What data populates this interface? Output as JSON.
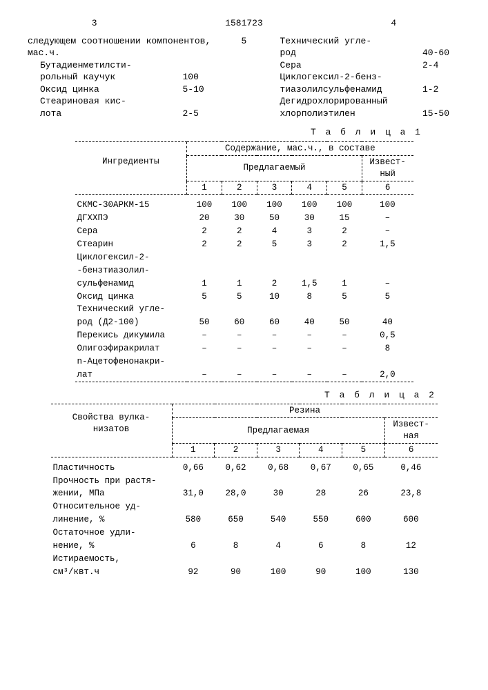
{
  "header": {
    "left_page": "3",
    "doc_no": "1581723",
    "right_page": "4"
  },
  "intro": {
    "left_lead": "следующем соотношении компонентов, мас.ч.",
    "left_items": [
      {
        "label": "Бутадиенметилсти-\nрольный каучук",
        "value": "100"
      },
      {
        "label": "Оксид цинка",
        "value": "5-10"
      },
      {
        "label": "Стеариновая кис-\nлота",
        "value": "2-5"
      }
    ],
    "mid_col_marker": "5",
    "right_items": [
      {
        "label": "Технический угле-\nрод",
        "value": "40-60"
      },
      {
        "label": "Сера",
        "value": "2-4"
      },
      {
        "label": "Циклогексил-2-бенз-\nтиазолилсульфенамид",
        "value": "1-2"
      },
      {
        "label": "Дегидрохлорированный\nхлорполиэтилен",
        "value": "15-50"
      }
    ]
  },
  "table1": {
    "label": "Т а б л и ц а  1",
    "head": {
      "c0": "Ингредиенты",
      "group": "Содержание, мас.ч., в составе",
      "sub1": "Предлагаемый",
      "sub2": "Извест-\nный",
      "cols": [
        "1",
        "2",
        "3",
        "4",
        "5",
        "6"
      ]
    },
    "rows": [
      {
        "label": "СКМС-30АРКМ-15",
        "v": [
          "100",
          "100",
          "100",
          "100",
          "100",
          "100"
        ]
      },
      {
        "label": "ДГХХПЭ",
        "v": [
          "20",
          "30",
          "50",
          "30",
          "15",
          "–"
        ]
      },
      {
        "label": "Сера",
        "v": [
          "2",
          "2",
          "4",
          "3",
          "2",
          "–"
        ]
      },
      {
        "label": "Стеарин",
        "v": [
          "2",
          "2",
          "5",
          "3",
          "2",
          "1,5"
        ]
      },
      {
        "label": "Циклогексил-2-\n-бензтиазолил-\nсульфенамид",
        "v": [
          "1",
          "1",
          "2",
          "1,5",
          "1",
          "–"
        ]
      },
      {
        "label": "Оксид цинка",
        "v": [
          "5",
          "5",
          "10",
          "8",
          "5",
          "5"
        ]
      },
      {
        "label": "Технический угле-\nрод (Д2-100)",
        "v": [
          "50",
          "60",
          "60",
          "40",
          "50",
          "40"
        ]
      },
      {
        "label": "Перекись дикумила",
        "v": [
          "–",
          "–",
          "–",
          "–",
          "–",
          "0,5"
        ]
      },
      {
        "label": "Олигоэфиракрилат",
        "v": [
          "–",
          "–",
          "–",
          "–",
          "–",
          "8"
        ]
      },
      {
        "label": "n-Ацетофенонакри-\nлат",
        "v": [
          "–",
          "–",
          "–",
          "–",
          "–",
          "2,0"
        ]
      }
    ]
  },
  "table2": {
    "label": "Т а б л и ц а  2",
    "head": {
      "c0": "Свойства вулка-\nнизатов",
      "group": "Резина",
      "sub1": "Предлагаемая",
      "sub2": "Извест-\nная",
      "cols": [
        "1",
        "2",
        "3",
        "4",
        "5",
        "6"
      ]
    },
    "rows": [
      {
        "label": "Пластичность",
        "v": [
          "0,66",
          "0,62",
          "0,68",
          "0,67",
          "0,65",
          "0,46"
        ]
      },
      {
        "label": "Прочность при растя-\nжении, МПа",
        "v": [
          "31,0",
          "28,0",
          "30",
          "28",
          "26",
          "23,8"
        ]
      },
      {
        "label": "Относительное уд-\nлинение, %",
        "v": [
          "580",
          "650",
          "540",
          "550",
          "600",
          "600"
        ]
      },
      {
        "label": "Остаточное удли-\nнение, %",
        "v": [
          "6",
          "8",
          "4",
          "6",
          "8",
          "12"
        ]
      },
      {
        "label": "Истираемость,\nсм³/квт.ч",
        "v": [
          "92",
          "90",
          "100",
          "90",
          "100",
          "130"
        ]
      }
    ]
  }
}
